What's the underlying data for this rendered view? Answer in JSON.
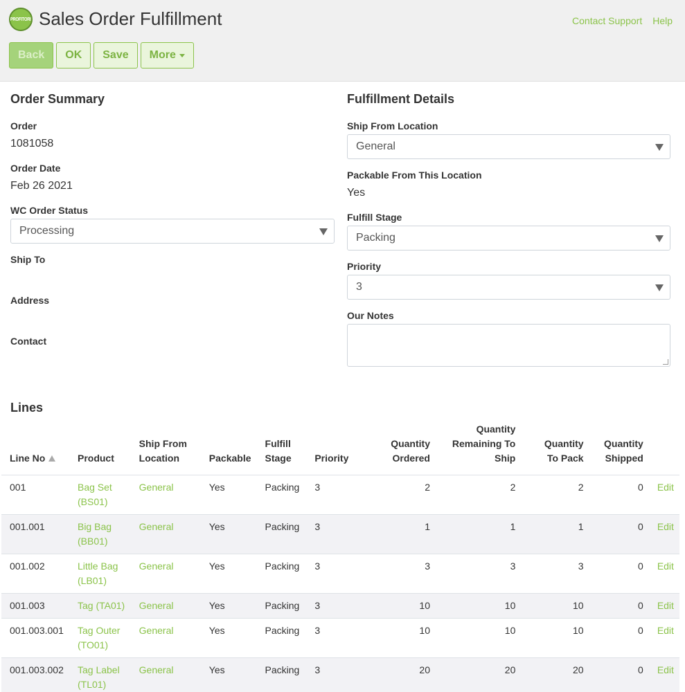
{
  "app": {
    "logo_text": "PROFITORI",
    "title": "Sales Order Fulfillment",
    "links": {
      "contact_support": "Contact Support",
      "help": "Help"
    }
  },
  "toolbar": {
    "back_label": "Back",
    "ok_label": "OK",
    "save_label": "Save",
    "more_label": "More"
  },
  "order_summary": {
    "title": "Order Summary",
    "order_label": "Order",
    "order_value": "1081058",
    "order_date_label": "Order Date",
    "order_date_value": "Feb 26 2021",
    "wc_status_label": "WC Order Status",
    "wc_status_value": "Processing",
    "ship_to_label": "Ship To",
    "address_label": "Address",
    "contact_label": "Contact"
  },
  "fulfillment_details": {
    "title": "Fulfillment Details",
    "ship_from_label": "Ship From Location",
    "ship_from_value": "General",
    "packable_label": "Packable From This Location",
    "packable_value": "Yes",
    "fulfill_stage_label": "Fulfill Stage",
    "fulfill_stage_value": "Packing",
    "priority_label": "Priority",
    "priority_value": "3",
    "notes_label": "Our Notes",
    "notes_value": ""
  },
  "lines": {
    "title": "Lines",
    "columns": {
      "line_no": "Line No",
      "product": "Product",
      "ship_from_1": "Ship From",
      "ship_from_2": "Location",
      "packable": "Packable",
      "fulfill_1": "Fulfill",
      "fulfill_2": "Stage",
      "priority": "Priority",
      "qty_ordered_1": "Quantity",
      "qty_ordered_2": "Ordered",
      "qty_remaining_1": "Quantity",
      "qty_remaining_2": "Remaining To",
      "qty_remaining_3": "Ship",
      "qty_pack_1": "Quantity",
      "qty_pack_2": "To Pack",
      "qty_shipped_1": "Quantity",
      "qty_shipped_2": "Shipped"
    },
    "rows": [
      {
        "line_no": "001",
        "product_1": "Bag Set",
        "product_2": "(BS01)",
        "location": "General",
        "packable": "Yes",
        "stage": "Packing",
        "priority": "3",
        "ordered": "2",
        "remaining": "2",
        "to_pack": "2",
        "shipped": "0",
        "action": "Edit"
      },
      {
        "line_no": "001.001",
        "product_1": "Big Bag",
        "product_2": "(BB01)",
        "location": "General",
        "packable": "Yes",
        "stage": "Packing",
        "priority": "3",
        "ordered": "1",
        "remaining": "1",
        "to_pack": "1",
        "shipped": "0",
        "action": "Edit"
      },
      {
        "line_no": "001.002",
        "product_1": "Little Bag",
        "product_2": "(LB01)",
        "location": "General",
        "packable": "Yes",
        "stage": "Packing",
        "priority": "3",
        "ordered": "3",
        "remaining": "3",
        "to_pack": "3",
        "shipped": "0",
        "action": "Edit"
      },
      {
        "line_no": "001.003",
        "product_1": "Tag (TA01)",
        "product_2": "",
        "location": "General",
        "packable": "Yes",
        "stage": "Packing",
        "priority": "3",
        "ordered": "10",
        "remaining": "10",
        "to_pack": "10",
        "shipped": "0",
        "action": "Edit"
      },
      {
        "line_no": "001.003.001",
        "product_1": "Tag Outer",
        "product_2": "(TO01)",
        "location": "General",
        "packable": "Yes",
        "stage": "Packing",
        "priority": "3",
        "ordered": "10",
        "remaining": "10",
        "to_pack": "10",
        "shipped": "0",
        "action": "Edit"
      },
      {
        "line_no": "001.003.002",
        "product_1": "Tag Label",
        "product_2": "(TL01)",
        "location": "General",
        "packable": "Yes",
        "stage": "Packing",
        "priority": "3",
        "ordered": "20",
        "remaining": "20",
        "to_pack": "20",
        "shipped": "0",
        "action": "Edit"
      }
    ]
  },
  "colors": {
    "accent": "#8bc34a",
    "header_bg": "#f0f0f0"
  }
}
